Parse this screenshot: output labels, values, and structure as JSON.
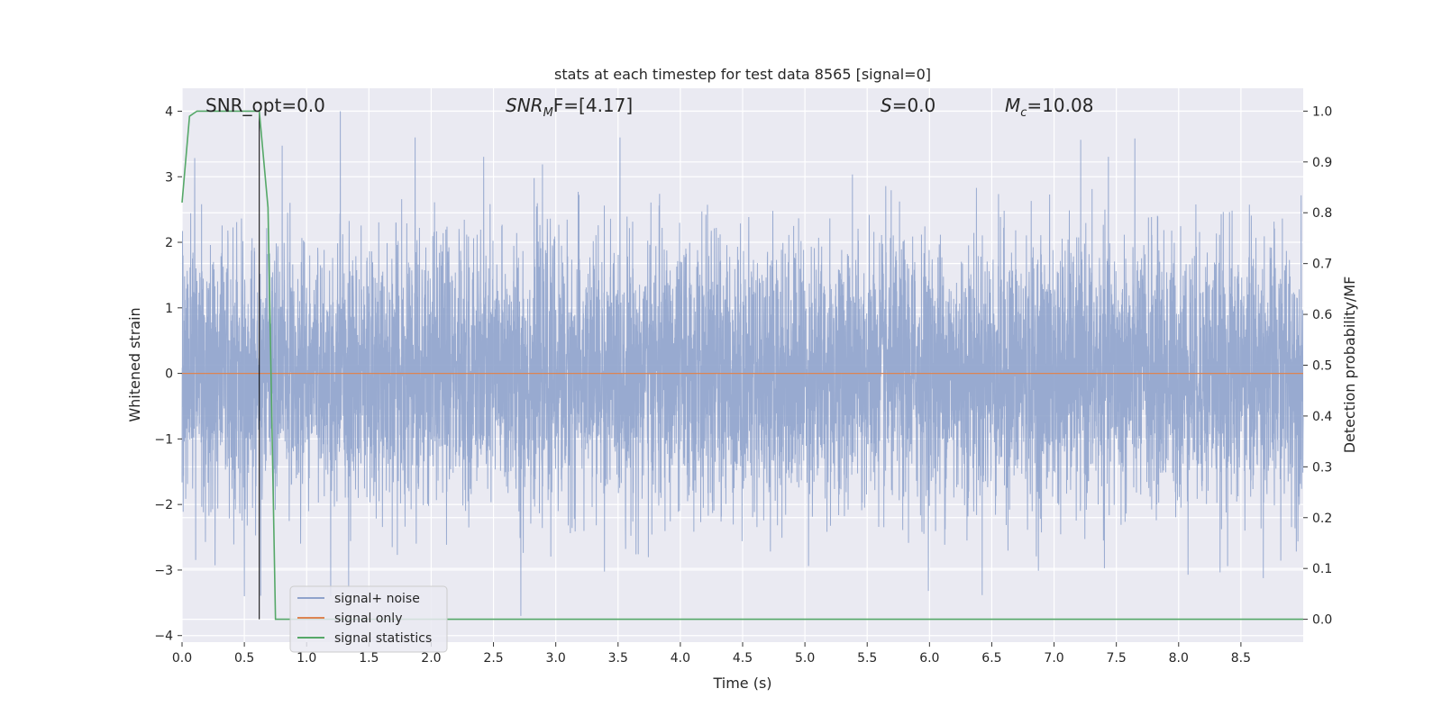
{
  "chart_data": {
    "type": "line",
    "title": "stats at each timestep for test data 8565 [signal=0]",
    "xlabel": "Time (s)",
    "ylabel": "Whitened strain",
    "ylabel_right": "Detection probability/MF",
    "xlim": [
      0.0,
      9.0
    ],
    "ylim": [
      -4.1,
      4.35
    ],
    "ylim_right": [
      -0.045,
      1.045
    ],
    "grid": true,
    "legend_position": "lower-left",
    "x_ticks": [
      "0.0",
      "0.5",
      "1.0",
      "1.5",
      "2.0",
      "2.5",
      "3.0",
      "3.5",
      "4.0",
      "4.5",
      "5.0",
      "5.5",
      "6.0",
      "6.5",
      "7.0",
      "7.5",
      "8.0",
      "8.5"
    ],
    "y_ticks": [
      "4",
      "3",
      "2",
      "1",
      "0",
      "−1",
      "−2",
      "−3",
      "−4"
    ],
    "y_right_ticks": [
      "1.0",
      "0.9",
      "0.8",
      "0.7",
      "0.6",
      "0.5",
      "0.4",
      "0.3",
      "0.2",
      "0.1",
      "0.0"
    ],
    "annotations": {
      "snr_opt": "SNR_opt=0.0",
      "snr_mf_main": "SNR",
      "snr_mf_sub": "M",
      "snr_mf_rest": "F=[4.17]",
      "s_main": "S",
      "s_rest": "=0.0",
      "mc_main": "M",
      "mc_sub": "c",
      "mc_rest": "=10.08"
    },
    "series": [
      {
        "name": "signal+ noise",
        "axis": "left",
        "color": "#8fa3cc",
        "style": "dense noise",
        "x_range": [
          0.0,
          9.0
        ],
        "sampling": "~4096 Hz",
        "peak_max": 4.0,
        "peak_max_x": 1.27,
        "peak_min": -3.7,
        "peak_min_x": 2.72,
        "typical_amplitude": 1.0
      },
      {
        "name": "signal only",
        "axis": "left",
        "color": "#dd8452",
        "x": [
          0.0,
          9.0
        ],
        "y": [
          0.0,
          0.0
        ]
      },
      {
        "name": "signal statistics",
        "axis": "right",
        "color": "#55a868",
        "x": [
          0.0,
          0.06,
          0.12,
          0.25,
          0.5,
          0.62,
          0.69,
          0.75,
          0.77,
          9.0
        ],
        "y": [
          0.82,
          0.99,
          1.0,
          1.0,
          1.0,
          1.0,
          0.81,
          0.0,
          0.0,
          0.0
        ]
      }
    ],
    "vertical_marker": {
      "x": 0.62,
      "color": "#000000"
    }
  }
}
